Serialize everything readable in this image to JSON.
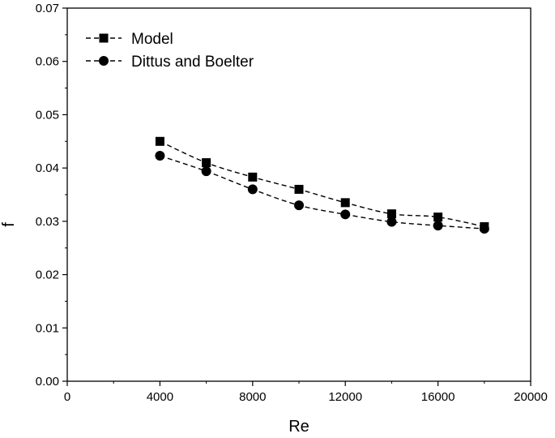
{
  "chart_data": {
    "type": "line",
    "title": "",
    "xlabel": "Re",
    "ylabel": "f",
    "xlim": [
      0,
      20000
    ],
    "ylim": [
      0,
      0.07
    ],
    "x_ticks": [
      0,
      4000,
      8000,
      12000,
      16000,
      20000
    ],
    "x_tick_labels": [
      "0",
      "4000",
      "8000",
      "12000",
      "16000",
      "20000"
    ],
    "y_ticks": [
      0,
      0.01,
      0.02,
      0.03,
      0.04,
      0.05,
      0.06,
      0.07
    ],
    "y_tick_labels": [
      "0.00",
      "0.01",
      "0.02",
      "0.03",
      "0.04",
      "0.05",
      "0.06",
      "0.07"
    ],
    "grid": false,
    "legend_position": "top-left",
    "x": [
      4000,
      6000,
      8000,
      10000,
      12000,
      14000,
      16000,
      18000
    ],
    "series": [
      {
        "name": "Model",
        "marker": "square",
        "line_style": "dashed",
        "color": "#000000",
        "values": [
          0.045,
          0.041,
          0.0383,
          0.036,
          0.0335,
          0.0314,
          0.0308,
          0.029
        ]
      },
      {
        "name": "Dittus and Boelter",
        "marker": "circle",
        "line_style": "dashed",
        "color": "#000000",
        "values": [
          0.0423,
          0.0394,
          0.036,
          0.033,
          0.0313,
          0.0299,
          0.0292,
          0.0286
        ]
      }
    ]
  }
}
